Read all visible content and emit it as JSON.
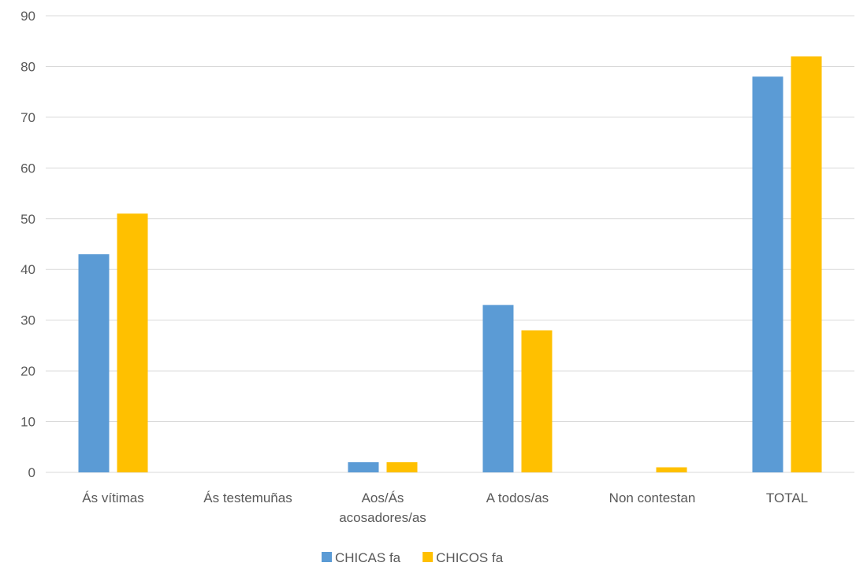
{
  "chart_data": {
    "type": "bar",
    "title": "",
    "xlabel": "",
    "ylabel": "",
    "ylim": [
      0,
      90
    ],
    "yticks": [
      0,
      10,
      20,
      30,
      40,
      50,
      60,
      70,
      80,
      90
    ],
    "grid": true,
    "legend_position": "bottom",
    "categories": [
      [
        "Ás vítimas"
      ],
      [
        "Ás testemuñas"
      ],
      [
        "Aos/Ás",
        "acosadores/as"
      ],
      [
        "A todos/as"
      ],
      [
        "Non contestan"
      ],
      [
        "TOTAL"
      ]
    ],
    "series": [
      {
        "name": "CHICAS fa",
        "color": "#5b9bd5",
        "values": [
          43,
          0,
          2,
          33,
          0,
          78
        ]
      },
      {
        "name": "CHICOS fa",
        "color": "#ffc000",
        "values": [
          51,
          0,
          2,
          28,
          1,
          82
        ]
      }
    ]
  }
}
